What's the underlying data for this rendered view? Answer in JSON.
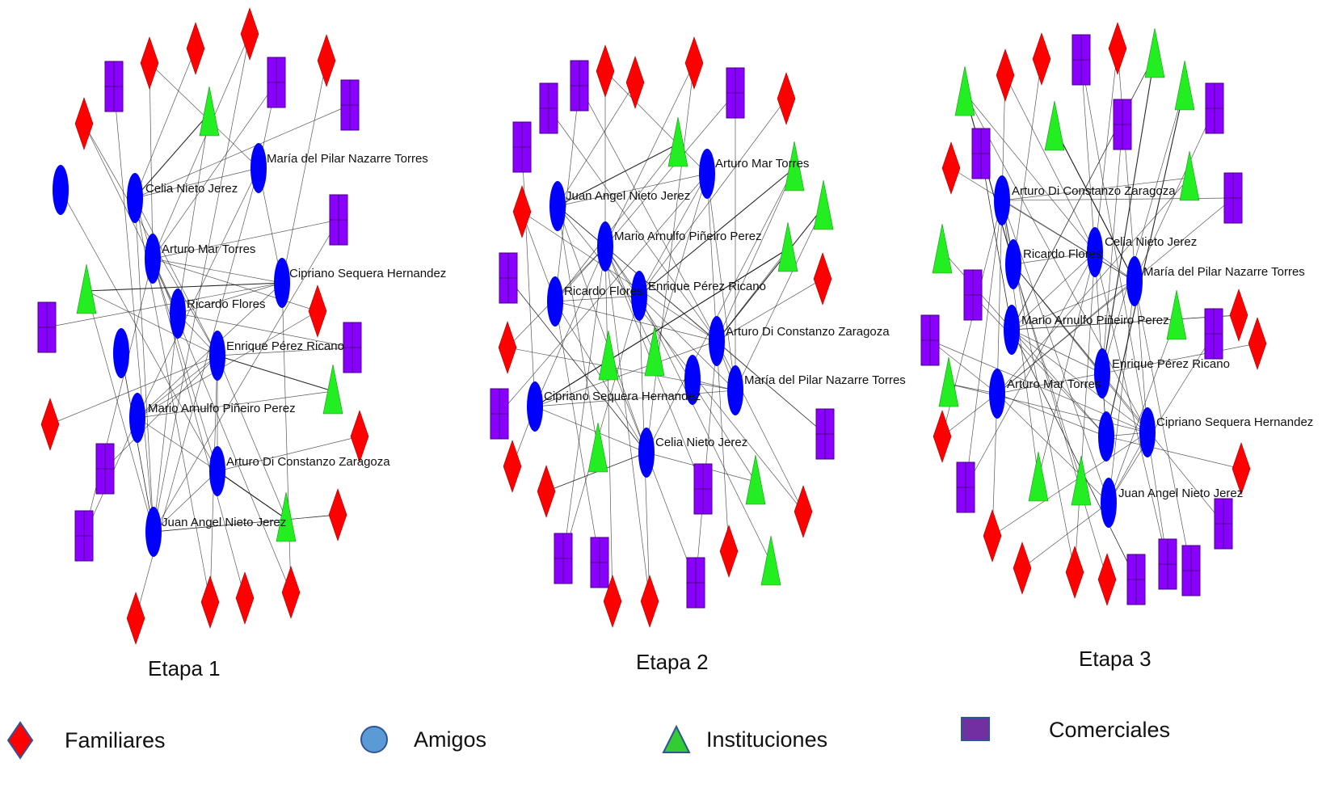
{
  "stages": [
    {
      "label": "Etapa 1",
      "named": [
        "María del Pilar Nazarre Torres",
        "Celia Nieto Jerez",
        "Arturo Mar Torres",
        "Cipriano Sequera Hernandez",
        "Ricardo Flores",
        "Enrique Pérez Ricano",
        "Mario Arnulfo Piñeiro Perez",
        "Arturo Di Constanzo Zaragoza",
        "Juan Angel Nieto Jerez"
      ]
    },
    {
      "label": "Etapa 2",
      "named": [
        "Arturo Mar Torres",
        "Juan Angel Nieto Jerez",
        "Mario Arnulfo Piñeiro Perez",
        "Enrique Pérez Ricano",
        "Ricardo Flores",
        "Arturo Di Constanzo Zaragoza",
        "María del Pilar Nazarre Torres",
        "Cipriano Sequera Hernandez",
        "Celia Nieto Jerez"
      ]
    },
    {
      "label": "Etapa 3",
      "named": [
        "Arturo Di Constanzo Zaragoza",
        "Ricardo Flores",
        "Celia Nieto Jerez",
        "María del Pilar Nazarre Torres",
        "Mario Arnulfo Piñeiro Perez",
        "Enrique Pérez Ricano",
        "Arturo Mar Torres",
        "Cipriano Sequera Hernandez",
        "Juan Angel Nieto Jerez"
      ]
    }
  ],
  "legend": [
    {
      "shape": "diamond",
      "label": "Familiares"
    },
    {
      "shape": "circle",
      "label": "Amigos"
    },
    {
      "shape": "triangle",
      "label": "Instituciones"
    },
    {
      "shape": "square",
      "label": "Comerciales"
    }
  ],
  "colors": {
    "familiares": "#ff0000",
    "amigos": "#0000ff",
    "instituciones": "#22ee22",
    "comerciales": "#8a00ff",
    "legend_amigos": "#5b9bd5",
    "legend_instituciones": "#33cc33",
    "legend_comerciales": "#7030a0"
  }
}
